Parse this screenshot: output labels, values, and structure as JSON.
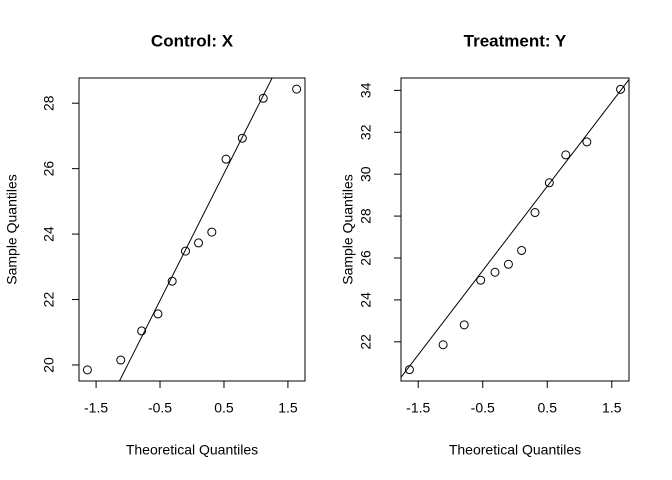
{
  "chart_data": [
    {
      "type": "scatter",
      "title": "Control: X",
      "xlabel": "Theoretical Quantiles",
      "ylabel": "Sample Quantiles",
      "x": [
        -1.636,
        -1.114,
        -0.787,
        -0.532,
        -0.31,
        -0.102,
        0.102,
        0.31,
        0.532,
        0.787,
        1.114,
        1.636
      ],
      "y": [
        19.85,
        20.15,
        21.04,
        21.56,
        22.56,
        23.48,
        23.73,
        24.06,
        26.29,
        26.93,
        28.15,
        28.43
      ],
      "qqline": {
        "intercept": 23.91,
        "slope": 3.88
      },
      "xlim": [
        -1.767,
        1.767
      ],
      "ylim": [
        19.51,
        28.77
      ],
      "xticks": [
        -1.5,
        -0.5,
        0.5,
        1.5
      ],
      "yticks": [
        20,
        22,
        24,
        26,
        28
      ]
    },
    {
      "type": "scatter",
      "title": "Treatment: Y",
      "xlabel": "Theoretical Quantiles",
      "ylabel": "Sample Quantiles",
      "x": [
        -1.636,
        -1.114,
        -0.787,
        -0.532,
        -0.31,
        -0.102,
        0.102,
        0.31,
        0.532,
        0.787,
        1.114,
        1.636
      ],
      "y": [
        20.67,
        21.86,
        22.81,
        24.94,
        25.32,
        25.7,
        26.36,
        28.17,
        29.59,
        30.92,
        31.54,
        34.05
      ],
      "qqline": {
        "intercept": 27.41,
        "slope": 4.02
      },
      "xlim": [
        -1.767,
        1.767
      ],
      "ylim": [
        20.13,
        34.59
      ],
      "xticks": [
        -1.5,
        -0.5,
        0.5,
        1.5
      ],
      "yticks": [
        22,
        24,
        26,
        28,
        30,
        32,
        34
      ]
    }
  ]
}
